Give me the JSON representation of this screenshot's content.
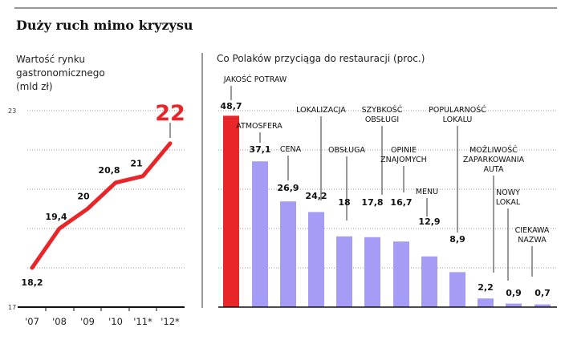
{
  "title": "Duży ruch mimo kryzysu",
  "colors": {
    "accent": "#e8262a",
    "bar": "#a49cf5",
    "text": "#111111"
  },
  "chart_data": [
    {
      "type": "line",
      "title": "Wartość rynku gastronomicznego (mld zł)",
      "title_lines": [
        "Wartość rynku",
        "gastronomicznego",
        "(mld zł)"
      ],
      "categories": [
        "'07",
        "'08",
        "'09",
        "'10",
        "'11*",
        "'12*"
      ],
      "values": [
        18.2,
        19.4,
        20,
        20.8,
        21,
        22
      ],
      "value_labels": [
        "18,2",
        "19,4",
        "20",
        "20,8",
        "21",
        "22"
      ],
      "ylim": [
        17,
        23
      ],
      "y_tick_labels": [
        "17",
        "23"
      ],
      "grid": true
    },
    {
      "type": "bar",
      "title": "Co Polaków przyciąga do restauracji (proc.)",
      "categories": [
        [
          "JAKOŚĆ POTRAW"
        ],
        [
          "ATMOSFERA"
        ],
        [
          "CENA"
        ],
        [
          "LOKALIZACJA"
        ],
        [
          "OBSŁUGA"
        ],
        [
          "SZYBKOŚĆ",
          "OBSŁUGI"
        ],
        [
          "OPINIE",
          "ZNAJOMYCH"
        ],
        [
          "MENU"
        ],
        [
          "POPULARNOŚĆ",
          "LOKALU"
        ],
        [
          "MOŻLIWOŚĆ",
          "ZAPARKOWANIA",
          "AUTA"
        ],
        [
          "NOWY",
          "LOKAL"
        ],
        [
          "CIEKAWA",
          "NAZWA"
        ]
      ],
      "values": [
        48.7,
        37.1,
        26.9,
        24.2,
        18,
        17.8,
        16.7,
        12.9,
        8.9,
        2.2,
        0.9,
        0.7
      ],
      "value_labels": [
        "48,7",
        "37,1",
        "26,9",
        "24,2",
        "18",
        "17,8",
        "16,7",
        "12,9",
        "8,9",
        "2,2",
        "0,9",
        "0,7"
      ],
      "highlight_index": 0,
      "ylim": [
        0,
        48.7
      ],
      "grid": true
    }
  ]
}
